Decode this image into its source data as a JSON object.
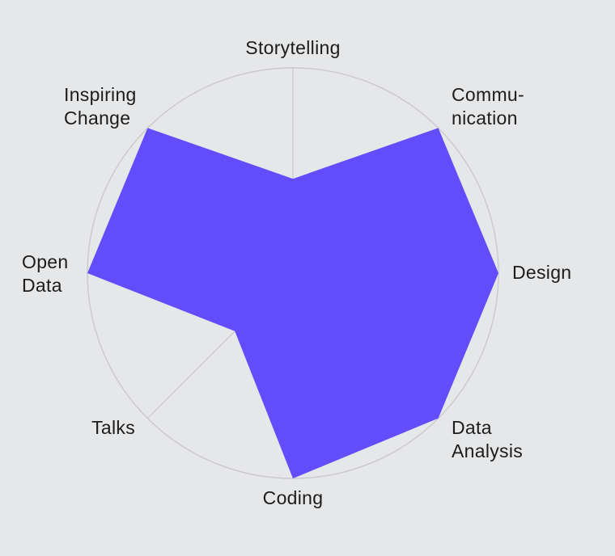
{
  "chart_data": {
    "type": "radar",
    "axes": [
      {
        "label": [
          "Storytelling"
        ],
        "value": 0.46
      },
      {
        "label": [
          "Commu-",
          "nication"
        ],
        "value": 1.0
      },
      {
        "label": [
          "Design"
        ],
        "value": 1.0
      },
      {
        "label": [
          "Data",
          "Analysis"
        ],
        "value": 1.0
      },
      {
        "label": [
          "Coding"
        ],
        "value": 1.0
      },
      {
        "label": [
          "Talks"
        ],
        "value": 0.4
      },
      {
        "label": [
          "Open",
          "Data"
        ],
        "value": 1.0
      },
      {
        "label": [
          "Inspiring",
          "Change"
        ],
        "value": 1.0
      }
    ],
    "range": [
      0,
      1
    ],
    "colors": {
      "area": "#634cfc",
      "grid": "#c9c9cd",
      "background": "#e6e7e9",
      "text": "#1c1c1c"
    }
  }
}
